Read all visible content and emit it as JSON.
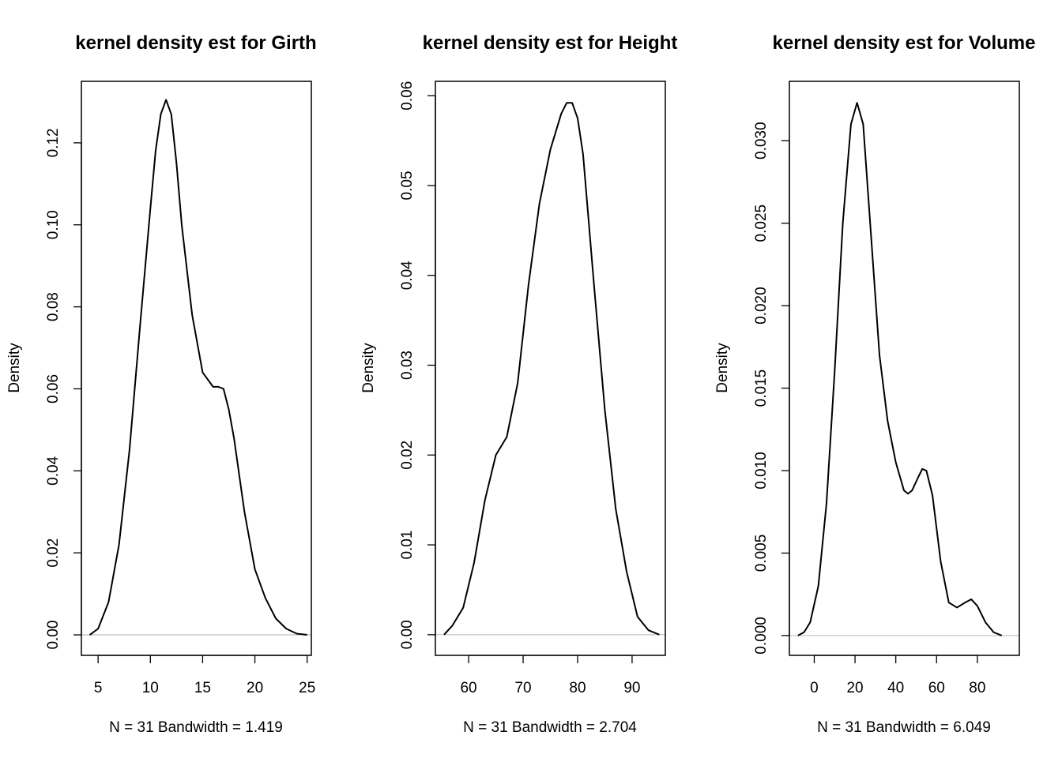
{
  "chart_data": [
    {
      "type": "line",
      "title": "kernel density est for Girth",
      "ylabel": "Density",
      "xlabel": "N = 31   Bandwidth = 1.419",
      "xlim": [
        3.4,
        25.4
      ],
      "ylim": [
        -0.005,
        0.135
      ],
      "xticks": [
        5,
        10,
        15,
        20,
        25
      ],
      "yticks": [
        0.0,
        0.02,
        0.04,
        0.06,
        0.08,
        0.1,
        0.12
      ],
      "ytick_labels": [
        "0.00",
        "0.02",
        "0.04",
        "0.06",
        "0.08",
        "0.10",
        "0.12"
      ],
      "zero_line": true,
      "x": [
        4.2,
        5,
        6,
        7,
        8,
        9,
        10,
        10.5,
        11,
        11.5,
        12,
        12.5,
        13,
        14,
        15,
        16,
        16.5,
        17,
        17.5,
        18,
        19,
        20,
        21,
        22,
        23,
        24,
        25
      ],
      "y": [
        0.0,
        0.0015,
        0.008,
        0.022,
        0.045,
        0.075,
        0.104,
        0.118,
        0.127,
        0.1305,
        0.127,
        0.115,
        0.1,
        0.078,
        0.064,
        0.0605,
        0.0605,
        0.06,
        0.055,
        0.048,
        0.03,
        0.016,
        0.009,
        0.004,
        0.0015,
        0.0003,
        0.0
      ]
    },
    {
      "type": "line",
      "title": "kernel density est for Height",
      "ylabel": "Density",
      "xlabel": "N = 31   Bandwidth = 2.704",
      "xlim": [
        53.9,
        96.1
      ],
      "ylim": [
        -0.0023,
        0.0616
      ],
      "xticks": [
        60,
        70,
        80,
        90
      ],
      "yticks": [
        0.0,
        0.01,
        0.02,
        0.03,
        0.04,
        0.05,
        0.06
      ],
      "ytick_labels": [
        "0.00",
        "0.01",
        "0.02",
        "0.03",
        "0.04",
        "0.05",
        "0.06"
      ],
      "zero_line": true,
      "x": [
        55.5,
        57,
        59,
        61,
        63,
        65,
        67,
        69,
        71,
        73,
        75,
        77,
        78,
        79,
        80,
        81,
        83,
        85,
        87,
        89,
        91,
        93,
        95
      ],
      "y": [
        0.0,
        0.001,
        0.003,
        0.008,
        0.015,
        0.02,
        0.022,
        0.028,
        0.039,
        0.048,
        0.054,
        0.058,
        0.0592,
        0.0592,
        0.0575,
        0.0535,
        0.039,
        0.025,
        0.014,
        0.007,
        0.002,
        0.0005,
        0.0
      ]
    },
    {
      "type": "line",
      "title": "kernel density est for Volume",
      "ylabel": "Density",
      "xlabel": "N = 31   Bandwidth = 6.049",
      "xlim": [
        -12.2,
        100.6
      ],
      "ylim": [
        -0.0012,
        0.0336
      ],
      "xticks": [
        0,
        20,
        40,
        60,
        80
      ],
      "yticks": [
        0.0,
        0.005,
        0.01,
        0.015,
        0.02,
        0.025,
        0.03
      ],
      "ytick_labels": [
        "0.000",
        "0.005",
        "0.010",
        "0.015",
        "0.020",
        "0.025",
        "0.030"
      ],
      "zero_line": true,
      "x": [
        -8,
        -5,
        -2,
        2,
        6,
        10,
        14,
        18,
        21,
        24,
        28,
        32,
        36,
        40,
        44,
        46,
        48,
        51,
        53,
        55,
        58,
        62,
        66,
        70,
        74,
        77,
        80,
        84,
        88,
        92
      ],
      "y": [
        0.0,
        0.0002,
        0.0008,
        0.003,
        0.008,
        0.016,
        0.025,
        0.031,
        0.0323,
        0.031,
        0.024,
        0.017,
        0.013,
        0.0105,
        0.0088,
        0.0086,
        0.0088,
        0.0096,
        0.0101,
        0.01,
        0.0085,
        0.0045,
        0.002,
        0.0017,
        0.002,
        0.0022,
        0.0018,
        0.0008,
        0.0002,
        0.0
      ]
    }
  ]
}
